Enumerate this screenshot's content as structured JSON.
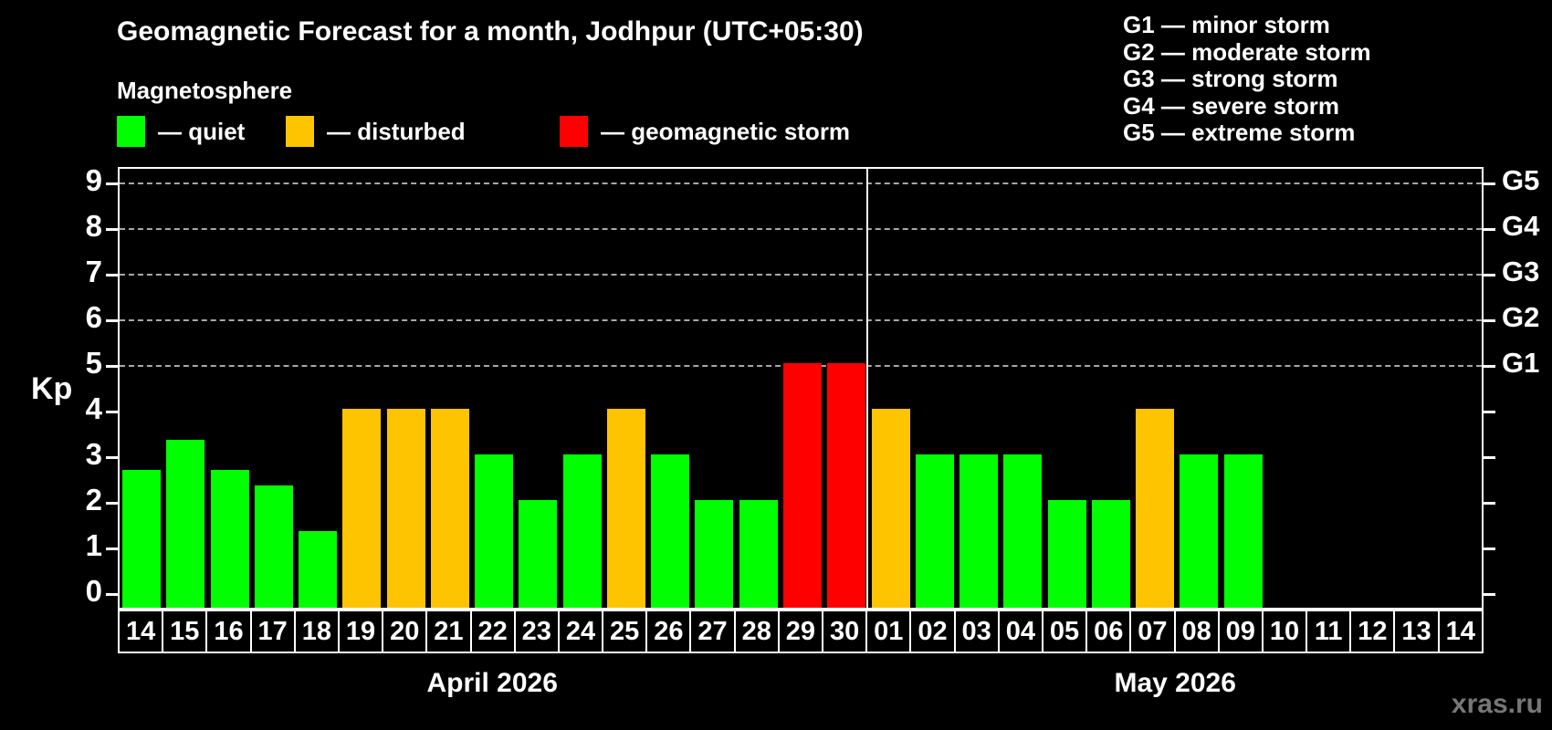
{
  "header": {
    "title": "Geomagnetic Forecast for a month, Jodhpur (UTC+05:30)",
    "subtitle": "Magnetosphere"
  },
  "legend": {
    "items": [
      {
        "name": "quiet",
        "label": "— quiet",
        "color": "#00FF00"
      },
      {
        "name": "disturbed",
        "label": "— disturbed",
        "color": "#FFC400"
      },
      {
        "name": "storm",
        "label": "— geomagnetic storm",
        "color": "#FF0000"
      }
    ]
  },
  "g_legend": {
    "items": [
      "G1 — minor storm",
      "G2 — moderate storm",
      "G3 — strong storm",
      "G4 — severe storm",
      "G5 — extreme storm"
    ]
  },
  "chart_data": {
    "type": "bar",
    "title": "Geomagnetic Forecast for a month, Jodhpur (UTC+05:30)",
    "xlabel": "",
    "ylabel": "Kp",
    "ylim": [
      0,
      9
    ],
    "y_ticks": [
      0,
      1,
      2,
      3,
      4,
      5,
      6,
      7,
      8,
      9
    ],
    "gridlines_at": [
      5,
      6,
      7,
      8,
      9
    ],
    "grid": true,
    "right_axis": [
      {
        "kp": 5,
        "label": "G1"
      },
      {
        "kp": 6,
        "label": "G2"
      },
      {
        "kp": 7,
        "label": "G3"
      },
      {
        "kp": 8,
        "label": "G4"
      },
      {
        "kp": 9,
        "label": "G5"
      }
    ],
    "status_colors": {
      "quiet": "#00FF00",
      "disturbed": "#FFC400",
      "storm": "#FF0000"
    },
    "months": [
      {
        "label": "April 2026",
        "days": [
          {
            "day": "14",
            "kp": 2.67,
            "status": "quiet"
          },
          {
            "day": "15",
            "kp": 3.33,
            "status": "quiet"
          },
          {
            "day": "16",
            "kp": 2.67,
            "status": "quiet"
          },
          {
            "day": "17",
            "kp": 2.33,
            "status": "quiet"
          },
          {
            "day": "18",
            "kp": 1.33,
            "status": "quiet"
          },
          {
            "day": "19",
            "kp": 4,
            "status": "disturbed"
          },
          {
            "day": "20",
            "kp": 4,
            "status": "disturbed"
          },
          {
            "day": "21",
            "kp": 4,
            "status": "disturbed"
          },
          {
            "day": "22",
            "kp": 3,
            "status": "quiet"
          },
          {
            "day": "23",
            "kp": 2,
            "status": "quiet"
          },
          {
            "day": "24",
            "kp": 3,
            "status": "quiet"
          },
          {
            "day": "25",
            "kp": 4,
            "status": "disturbed"
          },
          {
            "day": "26",
            "kp": 3,
            "status": "quiet"
          },
          {
            "day": "27",
            "kp": 2,
            "status": "quiet"
          },
          {
            "day": "28",
            "kp": 2,
            "status": "quiet"
          },
          {
            "day": "29",
            "kp": 5,
            "status": "storm"
          },
          {
            "day": "30",
            "kp": 5,
            "status": "storm"
          }
        ]
      },
      {
        "label": "May 2026",
        "days": [
          {
            "day": "01",
            "kp": 4,
            "status": "disturbed"
          },
          {
            "day": "02",
            "kp": 3,
            "status": "quiet"
          },
          {
            "day": "03",
            "kp": 3,
            "status": "quiet"
          },
          {
            "day": "04",
            "kp": 3,
            "status": "quiet"
          },
          {
            "day": "05",
            "kp": 2,
            "status": "quiet"
          },
          {
            "day": "06",
            "kp": 2,
            "status": "quiet"
          },
          {
            "day": "07",
            "kp": 4,
            "status": "disturbed"
          },
          {
            "day": "08",
            "kp": 3,
            "status": "quiet"
          },
          {
            "day": "09",
            "kp": 3,
            "status": "quiet"
          },
          {
            "day": "10",
            "kp": null,
            "status": null
          },
          {
            "day": "11",
            "kp": null,
            "status": null
          },
          {
            "day": "12",
            "kp": null,
            "status": null
          },
          {
            "day": "13",
            "kp": null,
            "status": null
          },
          {
            "day": "14",
            "kp": null,
            "status": null
          }
        ]
      }
    ]
  },
  "watermark": "xras.ru"
}
